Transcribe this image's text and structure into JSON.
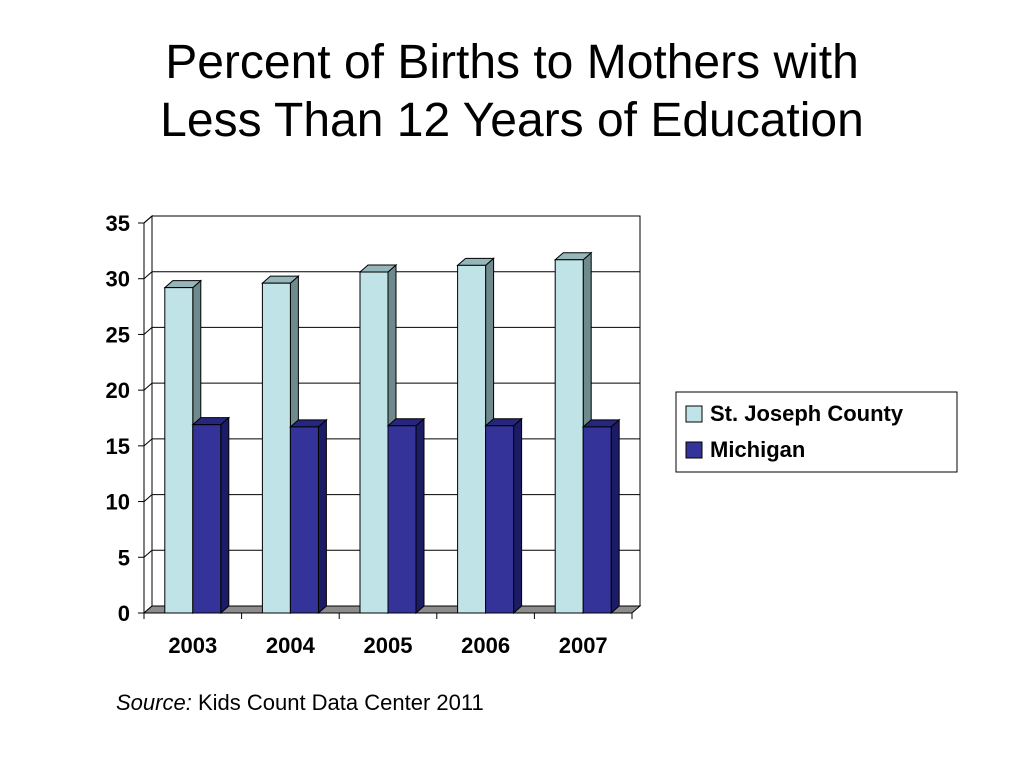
{
  "slide": {
    "title_line1": "Percent of Births to Mothers with",
    "title_line2": "Less Than 12 Years of Education",
    "source_label": "Source:",
    "source_text": " Kids Count Data Center 2011"
  },
  "colors": {
    "st_joseph_county": "#BFE3E6",
    "michigan": "#333399",
    "floor": "#8C8C8C"
  },
  "chart_data": {
    "type": "bar",
    "title": "Percent of Births to Mothers with Less Than 12 Years of Education",
    "xlabel": "",
    "ylabel": "",
    "categories": [
      "2003",
      "2004",
      "2005",
      "2006",
      "2007"
    ],
    "series": [
      {
        "name": "St. Joseph County",
        "values": [
          29.2,
          29.6,
          30.6,
          31.2,
          31.7
        ]
      },
      {
        "name": "Michigan",
        "values": [
          16.9,
          16.7,
          16.8,
          16.8,
          16.7
        ]
      }
    ],
    "ylim": [
      0,
      35
    ],
    "yticks": [
      0,
      5,
      10,
      15,
      20,
      25,
      30,
      35
    ],
    "grid": true,
    "three_d": true,
    "legend_position": "right"
  }
}
